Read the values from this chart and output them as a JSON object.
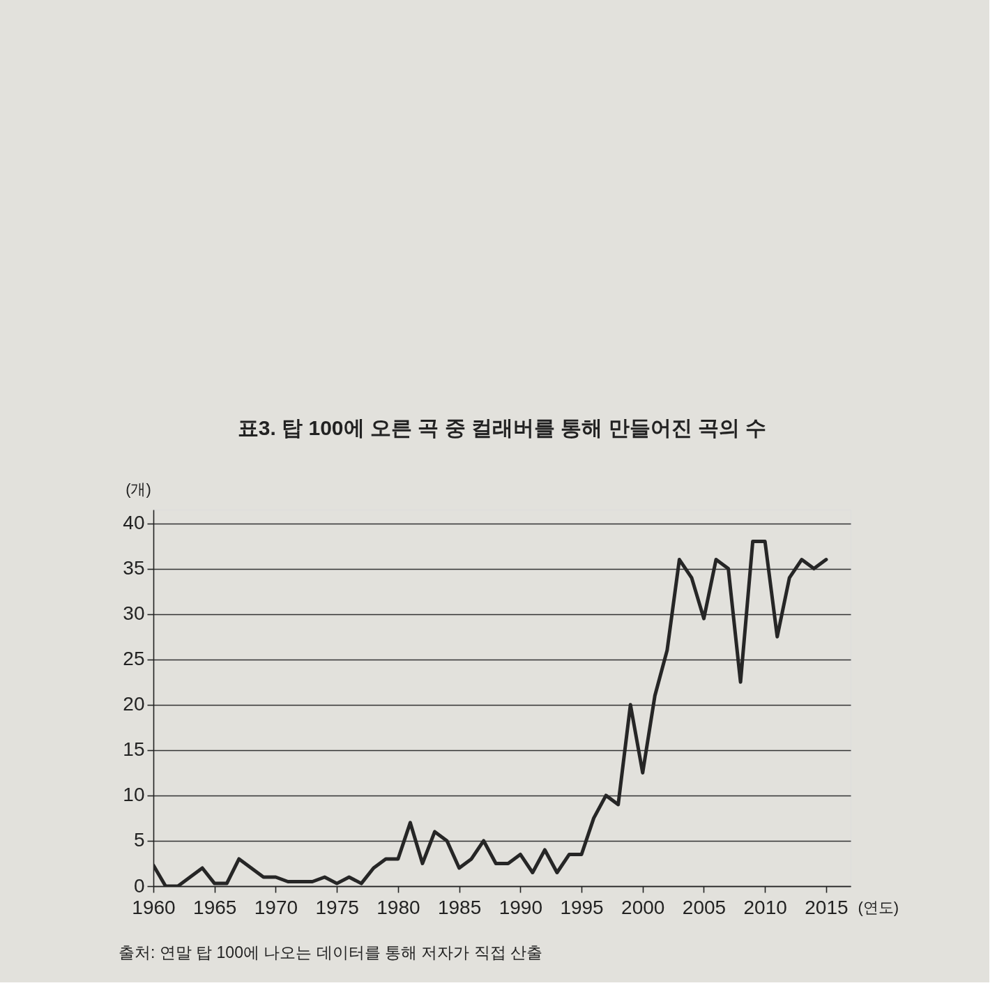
{
  "chart_data": {
    "type": "line",
    "title": "표3. 탑 100에 오른 곡 중 컬래버를 통해 만들어진 곡의 수",
    "ylabel": "(개)",
    "xlabel": "(연도)",
    "annotations": [
      "출처: 연말 탑 100에 나오는 데이터를 통해 저자가 직접 산출"
    ],
    "x": [
      1960,
      1961,
      1962,
      1963,
      1964,
      1965,
      1966,
      1967,
      1968,
      1969,
      1970,
      1971,
      1972,
      1973,
      1974,
      1975,
      1976,
      1977,
      1978,
      1979,
      1980,
      1981,
      1982,
      1983,
      1984,
      1985,
      1986,
      1987,
      1988,
      1989,
      1990,
      1991,
      1992,
      1993,
      1994,
      1995,
      1996,
      1997,
      1998,
      1999,
      2000,
      2001,
      2002,
      2003,
      2004,
      2005,
      2006,
      2007,
      2008,
      2009,
      2010,
      2011,
      2012,
      2013,
      2014,
      2015
    ],
    "series": [
      {
        "color": "#262626",
        "values": [
          2.3,
          0,
          0,
          1,
          2,
          0.3,
          0.3,
          3,
          2,
          1,
          1,
          0.5,
          0.5,
          0.5,
          1,
          0.3,
          1,
          0.3,
          2,
          3,
          3,
          7,
          2.5,
          6,
          5,
          2,
          3,
          5,
          2.5,
          2.5,
          3.5,
          1.5,
          4,
          1.5,
          3.5,
          3.5,
          7.5,
          10,
          9,
          20,
          12.5,
          21,
          26,
          36,
          34,
          29.5,
          36,
          35,
          22.5,
          38,
          38,
          27.5,
          34,
          36,
          35,
          36
        ]
      }
    ],
    "xlim": [
      1960,
      2017
    ],
    "xticks": [
      1960,
      1965,
      1970,
      1975,
      1980,
      1985,
      1990,
      1995,
      2000,
      2005,
      2010,
      2015
    ],
    "ylim": [
      0,
      41.5
    ],
    "yticks": [
      0,
      5,
      10,
      15,
      20,
      25,
      30,
      35,
      40
    ],
    "grid": "y"
  }
}
